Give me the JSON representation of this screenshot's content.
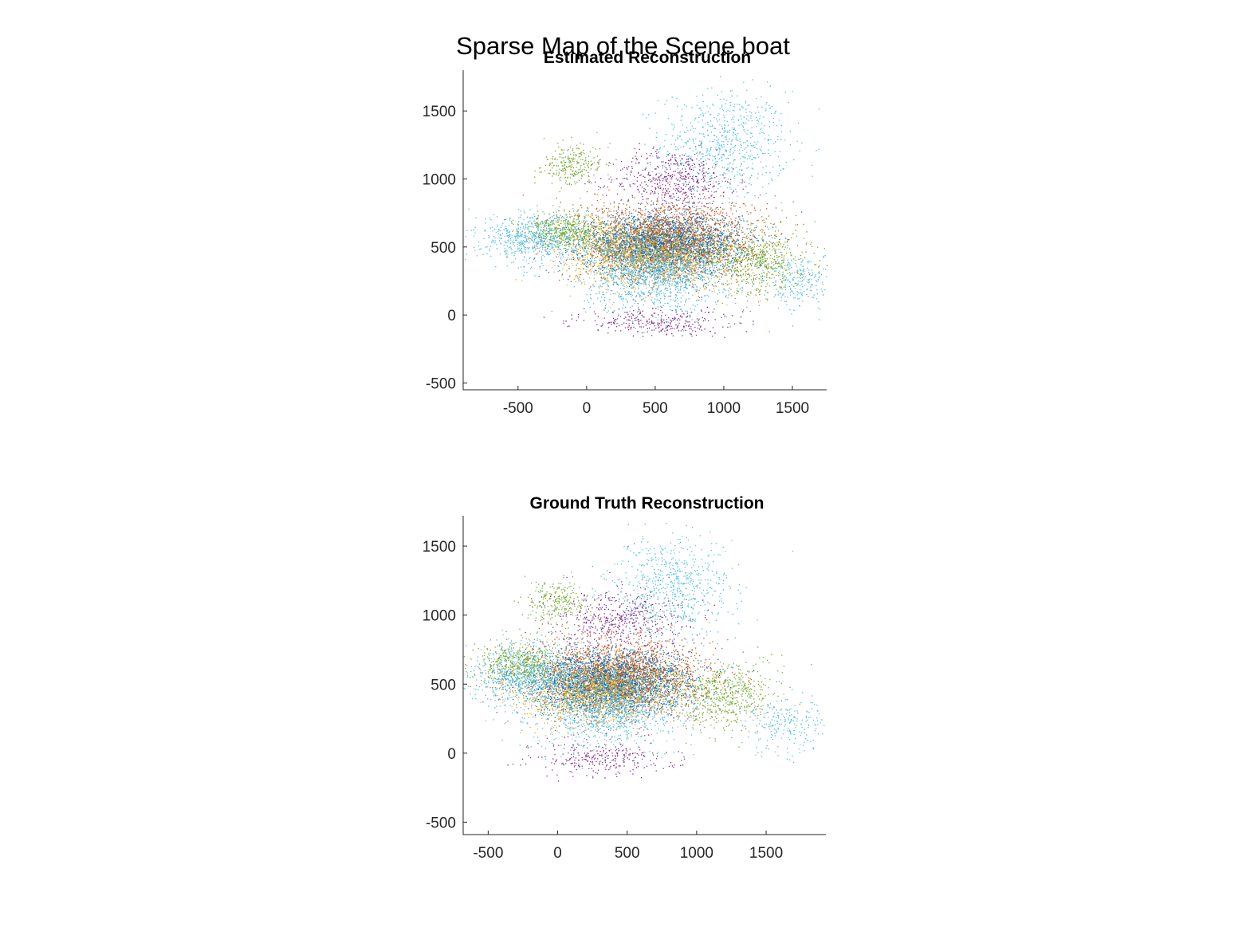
{
  "figure": {
    "title": "Sparse Map of the Scene boat"
  },
  "chart_data": [
    {
      "type": "scatter",
      "title": "Estimated Reconstruction",
      "xlabel": "",
      "ylabel": "",
      "xlim": [
        -900,
        1750
      ],
      "ylim": [
        -550,
        1800
      ],
      "xticks": [
        -500,
        0,
        500,
        1000,
        1500
      ],
      "yticks": [
        -500,
        0,
        500,
        1000,
        1500
      ],
      "grid": false,
      "series_colors": [
        "#0072BD",
        "#D95319",
        "#EDB120",
        "#7E2F8E",
        "#77AC30",
        "#4DBEEE"
      ],
      "clusters": [
        {
          "cx": 1000,
          "cy": 1250,
          "sx": 230,
          "sy": 200,
          "n": 700,
          "color": 5
        },
        {
          "cx": 620,
          "cy": 1000,
          "sx": 230,
          "sy": 110,
          "n": 500,
          "color": 3
        },
        {
          "cx": 550,
          "cy": 520,
          "sx": 280,
          "sy": 110,
          "n": 3200,
          "color": 0
        },
        {
          "cx": 600,
          "cy": 560,
          "sx": 330,
          "sy": 150,
          "n": 1800,
          "color": 1
        },
        {
          "cx": 450,
          "cy": 450,
          "sx": 300,
          "sy": 120,
          "n": 1600,
          "color": 2
        },
        {
          "cx": 500,
          "cy": 300,
          "sx": 260,
          "sy": 140,
          "n": 1100,
          "color": 5
        },
        {
          "cx": -380,
          "cy": 570,
          "sx": 200,
          "sy": 90,
          "n": 650,
          "color": 5
        },
        {
          "cx": 1250,
          "cy": 400,
          "sx": 190,
          "sy": 130,
          "n": 650,
          "color": 4
        },
        {
          "cx": -100,
          "cy": 1100,
          "sx": 110,
          "sy": 70,
          "n": 260,
          "color": 4
        },
        {
          "cx": 500,
          "cy": -50,
          "sx": 280,
          "sy": 50,
          "n": 300,
          "color": 3
        },
        {
          "cx": 1550,
          "cy": 250,
          "sx": 120,
          "sy": 90,
          "n": 200,
          "color": 5
        },
        {
          "cx": -150,
          "cy": 620,
          "sx": 170,
          "sy": 70,
          "n": 500,
          "color": 4
        }
      ]
    },
    {
      "type": "scatter",
      "title": "Ground Truth Reconstruction",
      "xlabel": "",
      "ylabel": "",
      "xlim": [
        -680,
        1930
      ],
      "ylim": [
        -590,
        1720
      ],
      "xticks": [
        -500,
        0,
        500,
        1000,
        1500
      ],
      "yticks": [
        -500,
        0,
        500,
        1000,
        1500
      ],
      "grid": false,
      "series_colors": [
        "#0072BD",
        "#D95319",
        "#EDB120",
        "#7E2F8E",
        "#77AC30",
        "#4DBEEE"
      ],
      "clusters": [
        {
          "cx": 800,
          "cy": 1200,
          "sx": 220,
          "sy": 190,
          "n": 650,
          "color": 5
        },
        {
          "cx": 450,
          "cy": 970,
          "sx": 230,
          "sy": 110,
          "n": 480,
          "color": 3
        },
        {
          "cx": 380,
          "cy": 520,
          "sx": 280,
          "sy": 110,
          "n": 3100,
          "color": 0
        },
        {
          "cx": 420,
          "cy": 560,
          "sx": 330,
          "sy": 150,
          "n": 1750,
          "color": 1
        },
        {
          "cx": 300,
          "cy": 450,
          "sx": 300,
          "sy": 120,
          "n": 1500,
          "color": 2
        },
        {
          "cx": 360,
          "cy": 320,
          "sx": 260,
          "sy": 140,
          "n": 1000,
          "color": 5
        },
        {
          "cx": -250,
          "cy": 580,
          "sx": 180,
          "sy": 110,
          "n": 700,
          "color": 5
        },
        {
          "cx": 1200,
          "cy": 420,
          "sx": 200,
          "sy": 130,
          "n": 600,
          "color": 4
        },
        {
          "cx": 0,
          "cy": 1100,
          "sx": 120,
          "sy": 80,
          "n": 250,
          "color": 4
        },
        {
          "cx": 330,
          "cy": -30,
          "sx": 260,
          "sy": 60,
          "n": 280,
          "color": 3
        },
        {
          "cx": 1650,
          "cy": 220,
          "sx": 150,
          "sy": 100,
          "n": 220,
          "color": 5
        },
        {
          "cx": -300,
          "cy": 650,
          "sx": 140,
          "sy": 80,
          "n": 450,
          "color": 4
        }
      ]
    }
  ]
}
